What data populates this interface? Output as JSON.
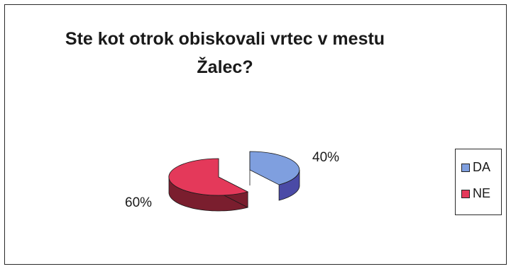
{
  "chart_data": {
    "type": "pie",
    "title": "Ste kot otrok obiskovali vrtec v mestu Žalec?",
    "categories": [
      "DA",
      "NE"
    ],
    "values": [
      40,
      60
    ],
    "data_labels": [
      "40%",
      "60%"
    ],
    "legend": [
      "DA",
      "NE"
    ],
    "legend_placement": "right",
    "colors": {
      "DA_top": "#7f9fdf",
      "DA_side": "#4a4aa6",
      "NE_top": "#e4395a",
      "NE_side": "#7a1e2e"
    }
  }
}
